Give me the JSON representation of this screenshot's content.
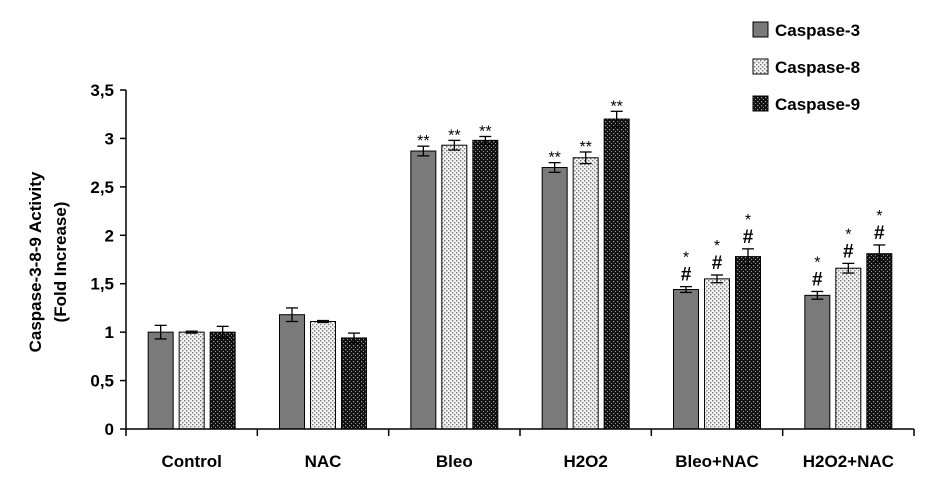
{
  "chart_data": {
    "type": "bar",
    "ylabel_line1": "Caspase-3-8-9 Activity",
    "ylabel_line2": "(Fold Increase)",
    "ylim": [
      0,
      3.5
    ],
    "yticks": [
      "0",
      "0,5",
      "1",
      "1,5",
      "2",
      "2,5",
      "3",
      "3,5"
    ],
    "categories": [
      "Control",
      "NAC",
      "Bleo",
      "H2O2",
      "Bleo+NAC",
      "H2O2+NAC"
    ],
    "series": [
      {
        "name": "Caspase-3",
        "color": "#7a7a7a",
        "pattern": "solid",
        "values": [
          1.0,
          1.18,
          2.87,
          2.7,
          1.44,
          1.38
        ],
        "errors": [
          0.07,
          0.07,
          0.05,
          0.05,
          0.03,
          0.04
        ]
      },
      {
        "name": "Caspase-8",
        "color": "#e0e0e0",
        "pattern": "light-dots",
        "values": [
          1.0,
          1.11,
          2.93,
          2.8,
          1.55,
          1.66
        ],
        "errors": [
          0.01,
          0.01,
          0.05,
          0.06,
          0.04,
          0.05
        ]
      },
      {
        "name": "Caspase-9",
        "color": "#111111",
        "pattern": "dark-dots",
        "values": [
          1.0,
          0.94,
          2.98,
          3.2,
          1.78,
          1.81
        ],
        "errors": [
          0.06,
          0.05,
          0.04,
          0.08,
          0.08,
          0.09
        ]
      }
    ],
    "annotations": [
      {
        "category": 2,
        "series": 0,
        "lines": [
          "**"
        ]
      },
      {
        "category": 2,
        "series": 1,
        "lines": [
          "**"
        ]
      },
      {
        "category": 2,
        "series": 2,
        "lines": [
          "**"
        ]
      },
      {
        "category": 3,
        "series": 0,
        "lines": [
          "**"
        ]
      },
      {
        "category": 3,
        "series": 1,
        "lines": [
          "**"
        ]
      },
      {
        "category": 3,
        "series": 2,
        "lines": [
          "**"
        ]
      },
      {
        "category": 4,
        "series": 0,
        "lines": [
          "*",
          "#"
        ]
      },
      {
        "category": 4,
        "series": 1,
        "lines": [
          "*",
          "#"
        ]
      },
      {
        "category": 4,
        "series": 2,
        "lines": [
          "*",
          "#"
        ]
      },
      {
        "category": 5,
        "series": 0,
        "lines": [
          "*",
          "#"
        ]
      },
      {
        "category": 5,
        "series": 1,
        "lines": [
          "*",
          "#"
        ]
      },
      {
        "category": 5,
        "series": 2,
        "lines": [
          "*",
          "#"
        ]
      }
    ],
    "legend_position": "top-right",
    "grid": false
  }
}
